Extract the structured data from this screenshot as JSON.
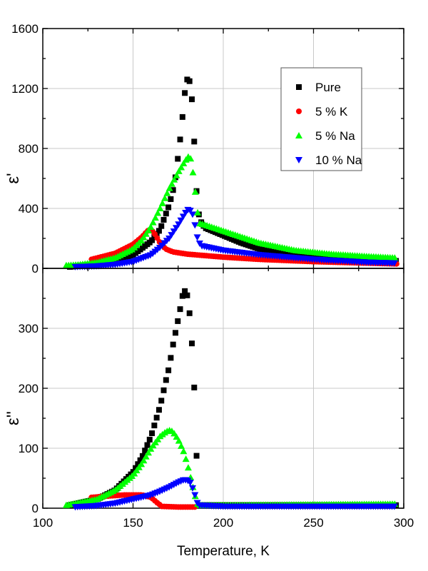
{
  "chart_data": [
    {
      "type": "scatter",
      "panel": "top",
      "xlabel": "Temperature, K",
      "ylabel": "ε'",
      "xlim": [
        100,
        300
      ],
      "ylim": [
        0,
        1600
      ],
      "xticks": [
        "100",
        "150",
        "200",
        "250",
        "300"
      ],
      "yticks": [
        "0",
        "400",
        "800",
        "1200",
        "1600"
      ],
      "grid": true,
      "legend": "top-right",
      "series": [
        {
          "name": "Pure",
          "marker": "square",
          "color": "#000000",
          "x": [
            115,
            130,
            140,
            150,
            160,
            165,
            170,
            173,
            175,
            177,
            178,
            179,
            180,
            181,
            182,
            183,
            184,
            185,
            186,
            188,
            190,
            200,
            210,
            220,
            240,
            260,
            280,
            296
          ],
          "y": [
            10,
            30,
            50,
            90,
            180,
            260,
            420,
            560,
            750,
            950,
            1100,
            1200,
            1260,
            1270,
            1200,
            1080,
            820,
            550,
            380,
            300,
            270,
            220,
            170,
            130,
            90,
            70,
            55,
            50
          ]
        },
        {
          "name": "5 % K",
          "marker": "circle",
          "color": "#ff0000",
          "x": [
            127,
            140,
            150,
            155,
            158,
            160,
            162,
            165,
            168,
            172,
            180,
            190,
            200,
            220,
            250,
            280,
            296
          ],
          "y": [
            60,
            100,
            160,
            210,
            250,
            260,
            230,
            170,
            130,
            110,
            95,
            85,
            75,
            60,
            45,
            35,
            30
          ]
        },
        {
          "name": "5 % Na",
          "marker": "triangle-up",
          "color": "#00ff00",
          "x": [
            113,
            120,
            130,
            140,
            150,
            155,
            160,
            165,
            170,
            175,
            179,
            181,
            182,
            183,
            184,
            185,
            186,
            187,
            190,
            200,
            220,
            240,
            260,
            280,
            296
          ],
          "y": [
            20,
            25,
            40,
            70,
            130,
            190,
            280,
            400,
            530,
            640,
            720,
            750,
            730,
            660,
            560,
            460,
            350,
            300,
            290,
            250,
            170,
            120,
            95,
            80,
            70
          ]
        },
        {
          "name": "10 % Na",
          "marker": "triangle-down",
          "color": "#0000ff",
          "x": [
            118,
            130,
            140,
            150,
            160,
            165,
            170,
            175,
            179,
            181,
            183,
            185,
            186,
            188,
            190,
            200,
            220,
            250,
            280,
            296
          ],
          "y": [
            10,
            15,
            25,
            45,
            90,
            140,
            200,
            290,
            370,
            400,
            360,
            250,
            180,
            150,
            145,
            120,
            90,
            60,
            40,
            35
          ]
        }
      ]
    },
    {
      "type": "scatter",
      "panel": "bottom",
      "xlabel": "Temperature, K",
      "ylabel": "ε''",
      "xlim": [
        100,
        300
      ],
      "ylim": [
        0,
        400
      ],
      "xticks": [
        "100",
        "150",
        "200",
        "250",
        "300"
      ],
      "yticks": [
        "0",
        "100",
        "200",
        "300"
      ],
      "grid": true,
      "series": [
        {
          "name": "Pure",
          "marker": "square",
          "color": "#000000",
          "x": [
            115,
            130,
            140,
            150,
            155,
            160,
            165,
            168,
            170,
            172,
            174,
            176,
            177,
            178,
            179,
            180,
            181,
            182,
            183,
            184,
            185,
            186,
            200,
            296
          ],
          "y": [
            5,
            15,
            30,
            60,
            85,
            120,
            170,
            210,
            235,
            270,
            300,
            330,
            350,
            360,
            363,
            355,
            336,
            300,
            258,
            195,
            108,
            5,
            5,
            5
          ]
        },
        {
          "name": "5 % K",
          "marker": "circle",
          "color": "#ff0000",
          "x": [
            127,
            135,
            145,
            155,
            160,
            163,
            166,
            175,
            185
          ],
          "y": [
            18,
            20,
            22,
            22,
            18,
            10,
            3,
            2,
            2
          ]
        },
        {
          "name": "5 % Na",
          "marker": "triangle-up",
          "color": "#00ff00",
          "x": [
            113,
            130,
            140,
            150,
            155,
            160,
            165,
            168,
            170,
            172,
            175,
            178,
            180,
            182,
            184,
            186,
            200,
            296
          ],
          "y": [
            5,
            15,
            30,
            55,
            75,
            100,
            120,
            127,
            130,
            128,
            115,
            95,
            75,
            50,
            25,
            5,
            5,
            7
          ]
        },
        {
          "name": "10 % Na",
          "marker": "triangle-down",
          "color": "#0000ff",
          "x": [
            118,
            130,
            140,
            150,
            160,
            165,
            170,
            175,
            178,
            180,
            182,
            184,
            186,
            200,
            296
          ],
          "y": [
            2,
            4,
            8,
            15,
            22,
            28,
            35,
            43,
            47,
            47,
            42,
            25,
            5,
            3,
            3
          ]
        }
      ]
    }
  ]
}
